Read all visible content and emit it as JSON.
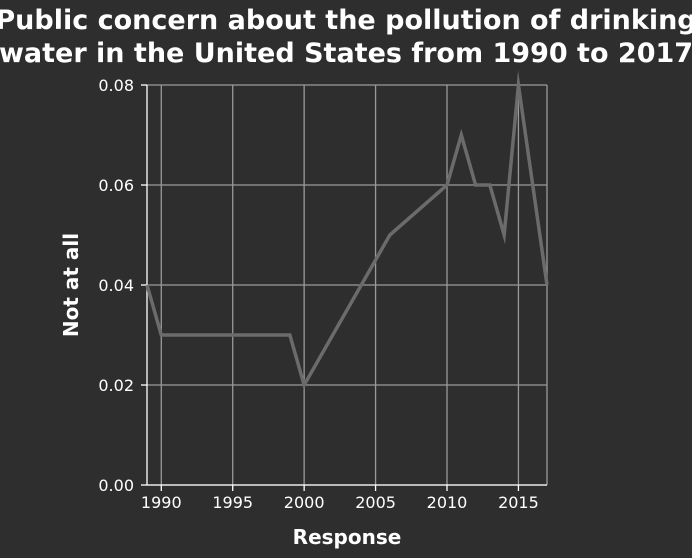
{
  "chart_data": {
    "type": "line",
    "title": [
      "Public concern about the pollution of drinking",
      "water in the United States from 1990 to 2017"
    ],
    "xlabel": "Response",
    "ylabel": "Not at all",
    "xlim": [
      1989,
      2017
    ],
    "ylim": [
      0,
      0.08
    ],
    "x_ticks": [
      1990,
      1995,
      2000,
      2005,
      2010,
      2015
    ],
    "x_tick_labels": [
      "1990",
      "1995",
      "2000",
      "2005",
      "2010",
      "2015"
    ],
    "y_ticks": [
      0,
      0.02,
      0.04,
      0.06,
      0.08
    ],
    "y_tick_labels": [
      "0.00",
      "0.02",
      "0.04",
      "0.06",
      "0.08"
    ],
    "grid": true,
    "series": [
      {
        "name": "Not at all",
        "x": [
          1989,
          1990,
          1999,
          2000,
          2006,
          2010,
          2011,
          2012,
          2013,
          2014,
          2015,
          2017
        ],
        "values": [
          0.04,
          0.03,
          0.03,
          0.02,
          0.05,
          0.06,
          0.07,
          0.06,
          0.06,
          0.05,
          0.08,
          0.04
        ]
      }
    ],
    "colors": {
      "background": "#2e2e2e",
      "line": "#6b6b6b",
      "grid": "#9a9a9a",
      "text": "#ffffff"
    }
  }
}
